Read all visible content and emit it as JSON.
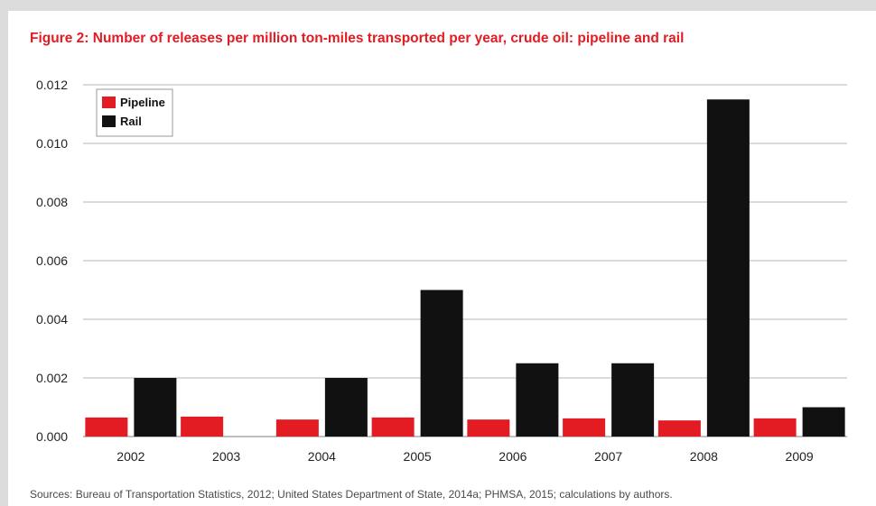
{
  "colors": {
    "pipeline": "#e31b23",
    "rail": "#111111",
    "title": "#e31b23",
    "grid": "#b5b5b5"
  },
  "chart_data": {
    "type": "bar",
    "title": "Figure 2: Number of releases per million ton-miles transported per year, crude oil: pipeline and rail",
    "xlabel": "",
    "ylabel": "",
    "categories": [
      "2002",
      "2003",
      "2004",
      "2005",
      "2006",
      "2007",
      "2008",
      "2009"
    ],
    "series": [
      {
        "name": "Pipeline",
        "color": "#e31b23",
        "values": [
          0.00065,
          0.00068,
          0.00058,
          0.00065,
          0.00058,
          0.00062,
          0.00055,
          0.00062
        ]
      },
      {
        "name": "Rail",
        "color": "#111111",
        "values": [
          0.002,
          0,
          0.002,
          0.005,
          0.0025,
          0.0025,
          0.0115,
          0.001
        ]
      }
    ],
    "ylim": [
      0,
      0.012
    ],
    "yticks": [
      "0.000",
      "0.002",
      "0.004",
      "0.006",
      "0.008",
      "0.010",
      "0.012"
    ],
    "grid": true,
    "legend_position": "top-left"
  },
  "source_note": "Sources: Bureau of Transportation Statistics, 2012; United States Department of State, 2014a; PHMSA, 2015; calculations by authors."
}
